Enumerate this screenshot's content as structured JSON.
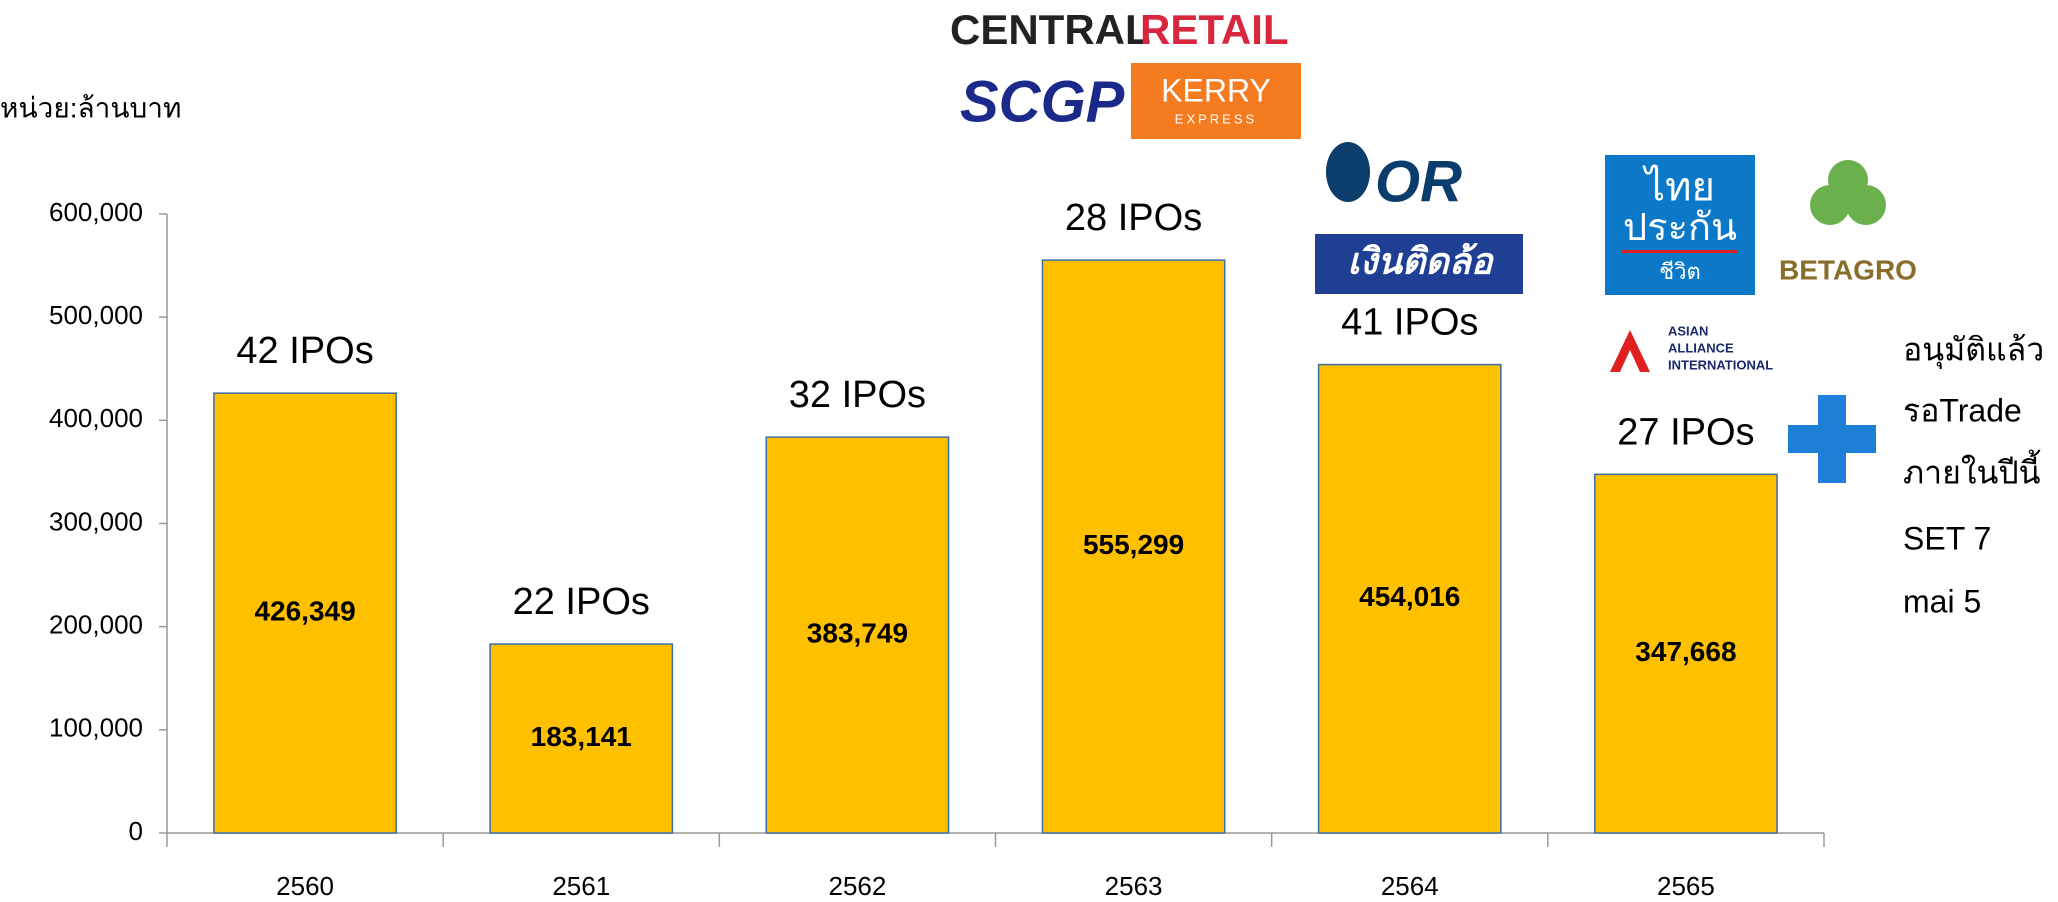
{
  "chart_data": {
    "type": "bar",
    "y_unit_label": "หน่วย:ล้านบาท",
    "categories": [
      "2560",
      "2561",
      "2562",
      "2563",
      "2564",
      "2565"
    ],
    "values": [
      426349,
      183141,
      383749,
      555299,
      454016,
      347668
    ],
    "value_labels": [
      "426,349",
      "183,141",
      "383,749",
      "555,299",
      "454,016",
      "347,668"
    ],
    "annotations": [
      "42 IPOs",
      "22 IPOs",
      "32 IPOs",
      "28 IPOs",
      "41 IPOs",
      "27 IPOs"
    ],
    "color": "#ffc000",
    "ylim": [
      0,
      600000
    ],
    "yticks": [
      0,
      {
        "value": 100000,
        "label": "100,000"
      },
      {
        "value": 200000,
        "label": "200,000"
      },
      {
        "value": 300000,
        "label": "300,000"
      },
      {
        "value": 400000,
        "label": "400,000"
      },
      {
        "value": 500000,
        "label": "500,000"
      },
      {
        "value": 600000,
        "label": "600,000"
      }
    ],
    "grid": false,
    "logos": [
      "CENTRAL",
      "RETAIL",
      "SCGP",
      "KERRY",
      "EXPRESS",
      "OR",
      "เงินติดล้อ",
      "ไทย",
      "ประกัน",
      "ชีวิต",
      "BETAGRO",
      "ASIAN",
      "ALLIANCE",
      "INTERNATIONAL"
    ],
    "side_note": [
      "อนุมัติแล้ว",
      "รอTrade",
      "ภายในปีนี้",
      "SET 7",
      "mai 5"
    ]
  }
}
